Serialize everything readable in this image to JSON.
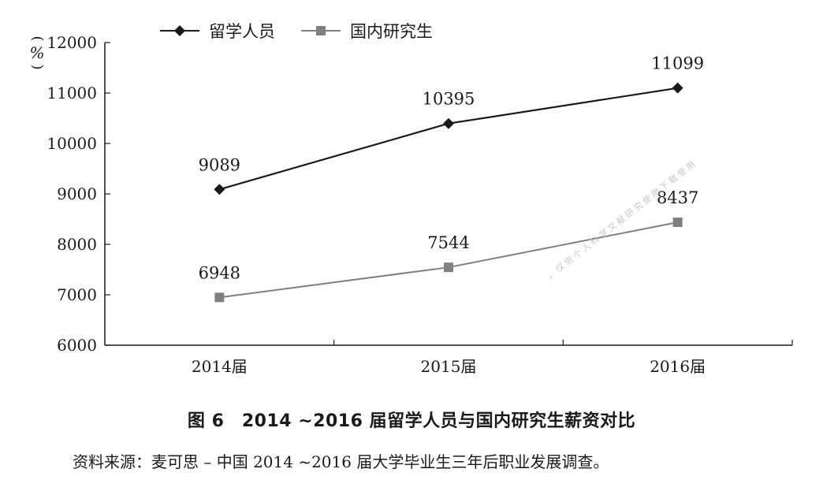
{
  "chart_data": {
    "type": "line",
    "categories": [
      "2014届",
      "2015届",
      "2016届"
    ],
    "series": [
      {
        "name": "留学人员",
        "values": [
          9089,
          10395,
          11099
        ],
        "color": "#1a1a1a",
        "marker": "diamond"
      },
      {
        "name": "国内研究生",
        "values": [
          6948,
          7544,
          8437
        ],
        "color": "#808080",
        "marker": "square"
      }
    ],
    "ylim": [
      6000,
      12000
    ],
    "yticks": [
      6000,
      7000,
      8000,
      9000,
      10000,
      11000,
      12000
    ],
    "ylabel": "%",
    "grid": false,
    "legend": "top-left",
    "title": "图 6　2014 ~2016 届留学人员与国内研究生薪资对比"
  },
  "figure": {
    "unit_label": "%",
    "caption": "图 6　2014 ~2016 届留学人员与国内研究生薪资对比",
    "source": "资料来源：麦可思 – 中国 2014 ~2016 届大学毕业生三年后职业发展调查。",
    "watermark": "，仅供个人科学文献研究使用下载使用"
  }
}
